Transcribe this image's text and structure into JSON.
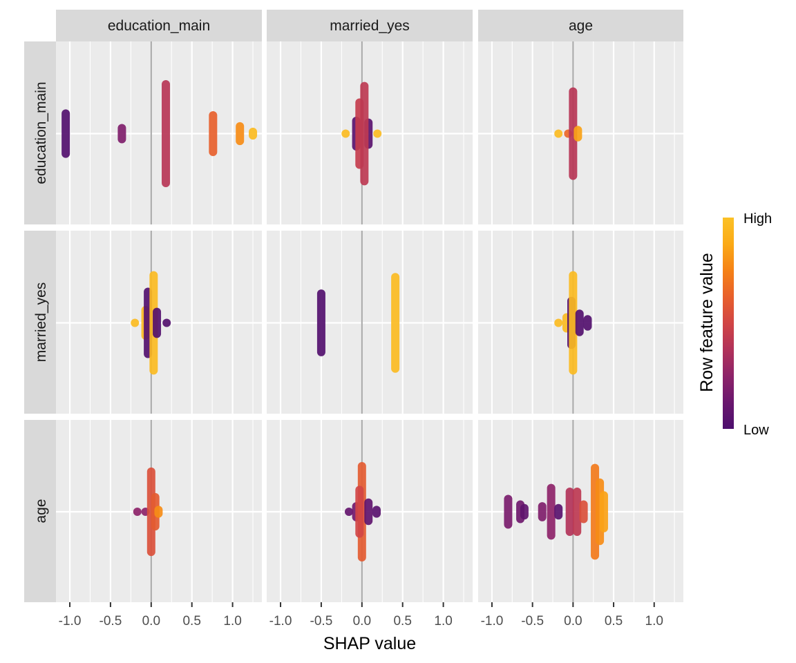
{
  "chart_data": {
    "type": "scatter",
    "subtype": "shap-interaction-beeswarm-facet-grid",
    "title": "",
    "xlabel": "SHAP value",
    "ylabel": "",
    "xlim": [
      -1.17,
      1.36
    ],
    "x_ticks": [
      -1.0,
      -0.5,
      0.0,
      0.5,
      1.0
    ],
    "x_tick_labels": [
      "-1.0",
      "-0.5",
      "0.0",
      "0.5",
      "1.0"
    ],
    "grid": true,
    "features": [
      "education_main",
      "married_yes",
      "age"
    ],
    "column_strips": [
      "education_main",
      "married_yes",
      "age"
    ],
    "row_strips": [
      "education_main",
      "married_yes",
      "age"
    ],
    "legend": {
      "title": "Row feature value",
      "high_label": "High",
      "low_label": "Low",
      "position": "right",
      "colormap": [
        "#4d0f6e",
        "#6a176e",
        "#8d2369",
        "#b1325a",
        "#d14545",
        "#e8602c",
        "#f58216",
        "#fbaa16",
        "#fbc126"
      ]
    },
    "panels": [
      {
        "row": "education_main",
        "col": "education_main",
        "clusters": [
          {
            "x": -1.05,
            "spread": 0.11,
            "color": 0.02
          },
          {
            "x": -0.36,
            "spread": 0.03,
            "color": 0.2
          },
          {
            "x": 0.18,
            "spread": 0.27,
            "color": 0.4
          },
          {
            "x": 0.76,
            "spread": 0.1,
            "color": 0.62
          },
          {
            "x": 1.09,
            "spread": 0.04,
            "color": 0.78
          },
          {
            "x": 1.25,
            "spread": 0.01,
            "color": 0.97
          }
        ]
      },
      {
        "row": "education_main",
        "col": "married_yes",
        "clusters": [
          {
            "x": -0.2,
            "spread": 0.0,
            "color": 0.97
          },
          {
            "x": -0.07,
            "spread": 0.07,
            "color": 0.05
          },
          {
            "x": 0.08,
            "spread": 0.06,
            "color": 0.05
          },
          {
            "x": -0.03,
            "spread": 0.17,
            "color": 0.45
          },
          {
            "x": 0.03,
            "spread": 0.26,
            "color": 0.42
          },
          {
            "x": 0.19,
            "spread": 0.0,
            "color": 0.97
          }
        ]
      },
      {
        "row": "education_main",
        "col": "age",
        "clusters": [
          {
            "x": -0.18,
            "spread": 0.0,
            "color": 0.97
          },
          {
            "x": -0.06,
            "spread": 0.0,
            "color": 0.65
          },
          {
            "x": 0.0,
            "spread": 0.23,
            "color": 0.4
          },
          {
            "x": 0.06,
            "spread": 0.02,
            "color": 0.85
          }
        ]
      },
      {
        "row": "married_yes",
        "col": "education_main",
        "clusters": [
          {
            "x": -0.2,
            "spread": 0.0,
            "color": 0.97
          },
          {
            "x": -0.07,
            "spread": 0.07,
            "color": 0.97
          },
          {
            "x": -0.04,
            "spread": 0.17,
            "color": 0.02
          },
          {
            "x": 0.03,
            "spread": 0.26,
            "color": 0.97
          },
          {
            "x": 0.07,
            "spread": 0.06,
            "color": 0.02
          },
          {
            "x": 0.19,
            "spread": 0.0,
            "color": 0.02
          }
        ]
      },
      {
        "row": "married_yes",
        "col": "married_yes",
        "clusters": [
          {
            "x": -0.5,
            "spread": 0.16,
            "color": 0.02
          },
          {
            "x": 0.41,
            "spread": 0.25,
            "color": 0.97
          }
        ]
      },
      {
        "row": "married_yes",
        "col": "age",
        "clusters": [
          {
            "x": -0.18,
            "spread": 0.0,
            "color": 0.97
          },
          {
            "x": -0.08,
            "spread": 0.03,
            "color": 0.97
          },
          {
            "x": -0.02,
            "spread": 0.12,
            "color": 0.02
          },
          {
            "x": 0.0,
            "spread": 0.26,
            "color": 0.97
          },
          {
            "x": 0.08,
            "spread": 0.05,
            "color": 0.02
          },
          {
            "x": 0.18,
            "spread": 0.02,
            "color": 0.02
          }
        ]
      },
      {
        "row": "age",
        "col": "education_main",
        "clusters": [
          {
            "x": -0.17,
            "spread": 0.0,
            "color": 0.25
          },
          {
            "x": -0.07,
            "spread": 0.0,
            "color": 0.25
          },
          {
            "x": 0.0,
            "spread": 0.22,
            "color": 0.55
          },
          {
            "x": 0.05,
            "spread": 0.08,
            "color": 0.6
          },
          {
            "x": 0.09,
            "spread": 0.01,
            "color": 0.78
          }
        ]
      },
      {
        "row": "age",
        "col": "married_yes",
        "clusters": [
          {
            "x": -0.16,
            "spread": 0.0,
            "color": 0.1
          },
          {
            "x": -0.07,
            "spread": 0.03,
            "color": 0.15
          },
          {
            "x": 0.0,
            "spread": 0.25,
            "color": 0.6
          },
          {
            "x": -0.03,
            "spread": 0.12,
            "color": 0.5
          },
          {
            "x": 0.08,
            "spread": 0.05,
            "color": 0.08
          },
          {
            "x": 0.18,
            "spread": 0.01,
            "color": 0.05
          }
        ]
      },
      {
        "row": "age",
        "col": "age",
        "clusters": [
          {
            "x": -0.8,
            "spread": 0.07,
            "color": 0.18
          },
          {
            "x": -0.65,
            "spread": 0.04,
            "color": 0.14
          },
          {
            "x": -0.6,
            "spread": 0.02,
            "color": 0.08
          },
          {
            "x": -0.38,
            "spread": 0.03,
            "color": 0.2
          },
          {
            "x": -0.27,
            "spread": 0.13,
            "color": 0.25
          },
          {
            "x": -0.18,
            "spread": 0.02,
            "color": 0.05
          },
          {
            "x": -0.04,
            "spread": 0.11,
            "color": 0.38
          },
          {
            "x": 0.05,
            "spread": 0.11,
            "color": 0.42
          },
          {
            "x": 0.13,
            "spread": 0.04,
            "color": 0.55
          },
          {
            "x": 0.27,
            "spread": 0.24,
            "color": 0.72
          },
          {
            "x": 0.33,
            "spread": 0.16,
            "color": 0.78
          },
          {
            "x": 0.38,
            "spread": 0.09,
            "color": 0.85
          }
        ]
      }
    ]
  }
}
